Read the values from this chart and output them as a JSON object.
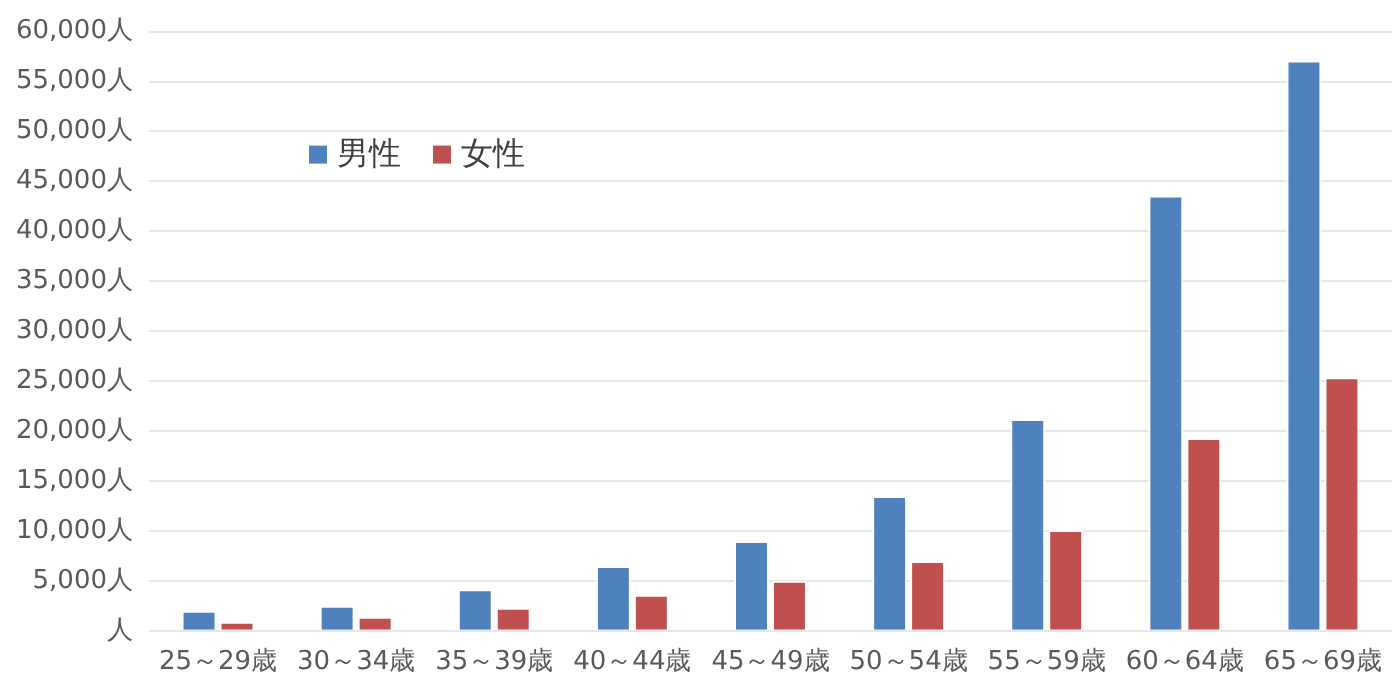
{
  "chart_data": {
    "type": "bar",
    "categories": [
      "25～29歳",
      "30～34歳",
      "35～39歳",
      "40～44歳",
      "45～49歳",
      "50～54歳",
      "55～59歳",
      "60～64歳",
      "65～69歳"
    ],
    "series": [
      {
        "name": "男性",
        "color": "#4f81bd",
        "values": [
          2000,
          2500,
          4150,
          6500,
          9000,
          13500,
          21200,
          43600,
          57100
        ]
      },
      {
        "name": "女性",
        "color": "#c0504d",
        "values": [
          900,
          1400,
          2300,
          3600,
          5000,
          7000,
          10100,
          19300,
          25400
        ]
      }
    ],
    "ylim": [
      0,
      60000
    ],
    "yticks": [
      {
        "value": 0,
        "label": "人"
      },
      {
        "value": 5000,
        "label": "5,000人"
      },
      {
        "value": 10000,
        "label": "10,000人"
      },
      {
        "value": 15000,
        "label": "15,000人"
      },
      {
        "value": 20000,
        "label": "20,000人"
      },
      {
        "value": 25000,
        "label": "25,000人"
      },
      {
        "value": 30000,
        "label": "30,000人"
      },
      {
        "value": 35000,
        "label": "35,000人"
      },
      {
        "value": 40000,
        "label": "40,000人"
      },
      {
        "value": 45000,
        "label": "45,000人"
      },
      {
        "value": 50000,
        "label": "50,000人"
      },
      {
        "value": 55000,
        "label": "55,000人"
      },
      {
        "value": 60000,
        "label": "60,000人"
      }
    ],
    "grid": "y",
    "legend": "top left"
  }
}
